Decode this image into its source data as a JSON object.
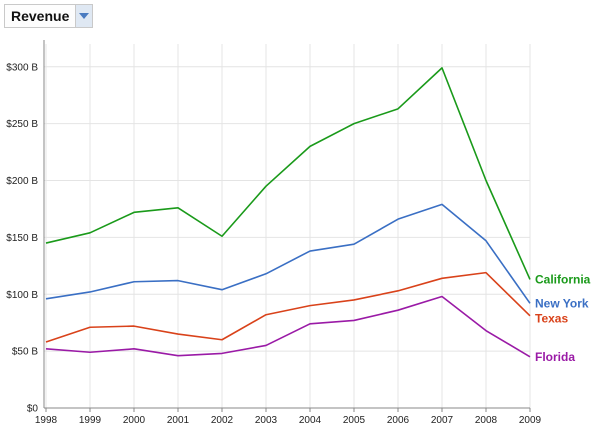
{
  "selector": {
    "value": "Revenue",
    "icon": "chevron-down-icon"
  },
  "chart_data": {
    "type": "line",
    "title": "",
    "xlabel": "",
    "ylabel": "",
    "categories": [
      "1998",
      "1999",
      "2000",
      "2001",
      "2002",
      "2003",
      "2004",
      "2005",
      "2006",
      "2007",
      "2008",
      "2009"
    ],
    "ylim": [
      0,
      320
    ],
    "yticks": [
      0,
      50,
      100,
      150,
      200,
      250,
      300
    ],
    "ytick_labels": [
      "$0",
      "$50 B",
      "$100 B",
      "$150 B",
      "$200 B",
      "$250 B",
      "$300 B"
    ],
    "grid": true,
    "legend": "end-of-line labels",
    "series": [
      {
        "name": "California",
        "color": "#1a9a1a",
        "values": [
          145,
          154,
          172,
          176,
          151,
          195,
          230,
          250,
          263,
          299,
          200,
          113
        ]
      },
      {
        "name": "New York",
        "color": "#3a6fc4",
        "values": [
          96,
          102,
          111,
          112,
          104,
          118,
          138,
          144,
          166,
          179,
          147,
          92
        ]
      },
      {
        "name": "Texas",
        "color": "#d9421a",
        "values": [
          58,
          71,
          72,
          65,
          60,
          82,
          90,
          95,
          103,
          114,
          119,
          81
        ]
      },
      {
        "name": "Florida",
        "color": "#9a1aa6",
        "values": [
          52,
          49,
          52,
          46,
          48,
          55,
          74,
          77,
          86,
          98,
          68,
          45
        ]
      }
    ]
  }
}
